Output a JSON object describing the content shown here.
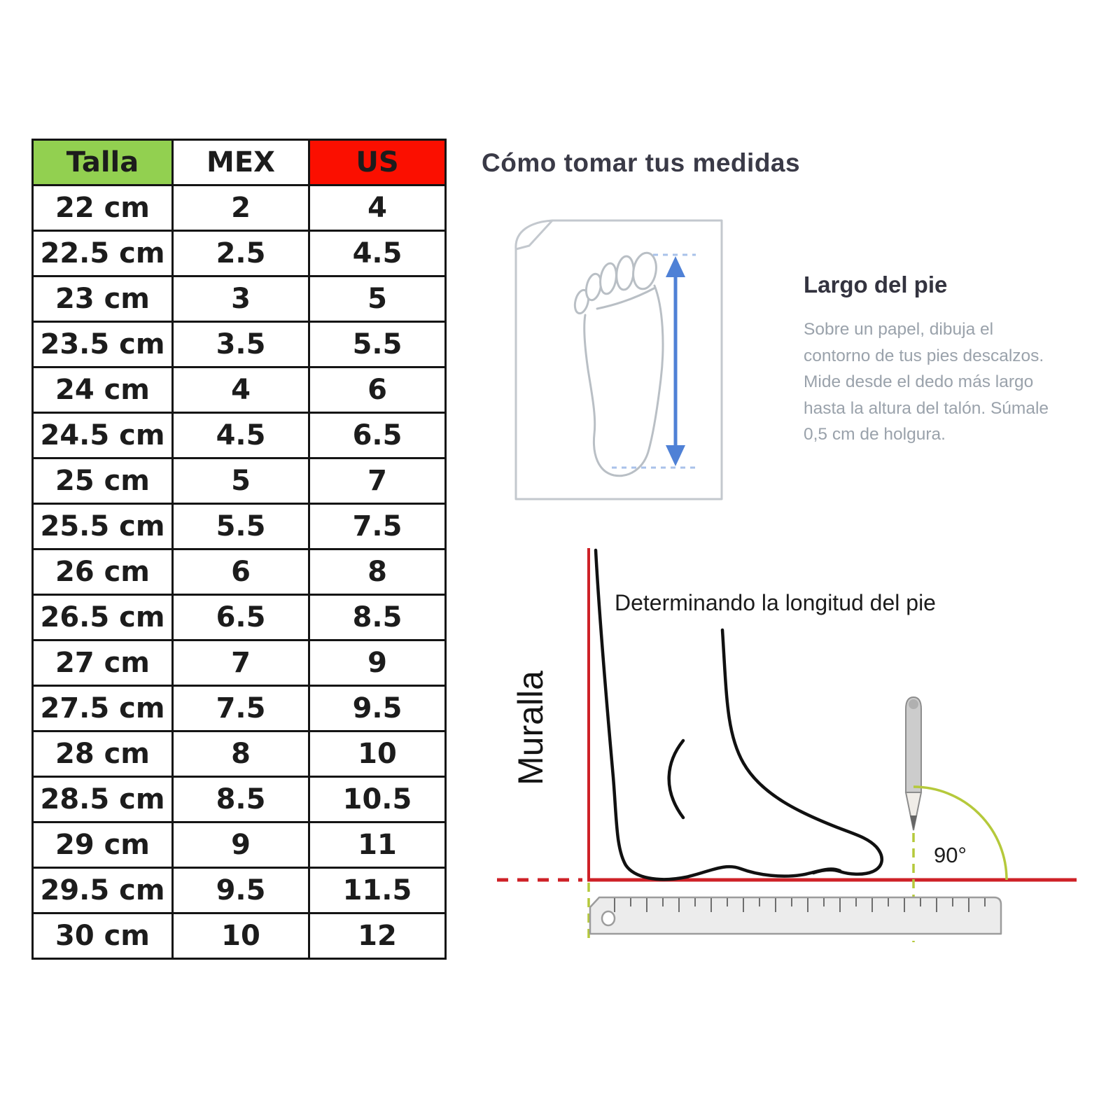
{
  "table": {
    "headers": [
      "Talla",
      "MEX",
      "US"
    ],
    "rows": [
      [
        "22 cm",
        "2",
        "4"
      ],
      [
        "22.5 cm",
        "2.5",
        "4.5"
      ],
      [
        "23 cm",
        "3",
        "5"
      ],
      [
        "23.5 cm",
        "3.5",
        "5.5"
      ],
      [
        "24 cm",
        "4",
        "6"
      ],
      [
        "24.5 cm",
        "4.5",
        "6.5"
      ],
      [
        "25 cm",
        "5",
        "7"
      ],
      [
        "25.5 cm",
        "5.5",
        "7.5"
      ],
      [
        "26 cm",
        "6",
        "8"
      ],
      [
        "26.5 cm",
        "6.5",
        "8.5"
      ],
      [
        "27 cm",
        "7",
        "9"
      ],
      [
        "27.5 cm",
        "7.5",
        "9.5"
      ],
      [
        "28 cm",
        "8",
        "10"
      ],
      [
        "28.5 cm",
        "8.5",
        "10.5"
      ],
      [
        "29 cm",
        "9",
        "11"
      ],
      [
        "29.5 cm",
        "9.5",
        "11.5"
      ],
      [
        "30 cm",
        "10",
        "12"
      ]
    ],
    "colors": {
      "talla_bg": "#92d050",
      "mex_bg": "#ffffff",
      "us_bg": "#fb0f00"
    }
  },
  "right": {
    "title": "Cómo tomar tus medidas",
    "largo_title": "Largo del pie",
    "paragraph_lines": [
      "Sobre un papel, dibuja el",
      "contorno de tus pies descalzos.",
      "Mide desde el dedo más largo",
      "hasta la altura del talón. Súmale",
      "0,5 cm de holgura."
    ]
  },
  "diagram": {
    "title": "Determinando la longitud del pie",
    "wall_label": "Muralla",
    "angle_label": "90°",
    "colors": {
      "line_red": "#ce2127",
      "guide_green": "#b5c93b",
      "arrow_blue": "#4f81d6",
      "sketch_gray": "#b9bfc5",
      "foot_black": "#111111"
    }
  }
}
